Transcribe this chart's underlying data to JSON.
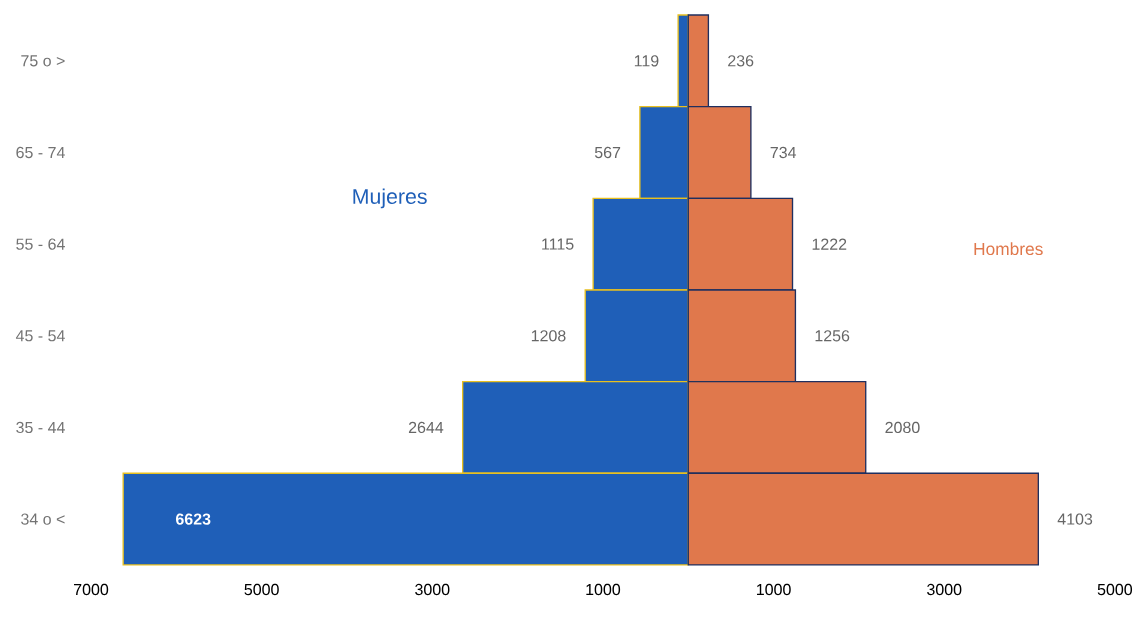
{
  "chart_data": {
    "type": "bar",
    "orientation": "horizontal",
    "data_labels": true,
    "categories": [
      "75 o >",
      "65 - 74",
      "55 - 64",
      "45 - 54",
      "35 - 44",
      "34 o <"
    ],
    "series": [
      {
        "name": "Mujeres",
        "color": "#1f5fb8",
        "values": [
          119,
          567,
          1115,
          1208,
          2644,
          6623
        ],
        "base": [
          -119,
          -567,
          -1115,
          -1208,
          -2644,
          -6623
        ]
      },
      {
        "name": "Hombres",
        "color": "#e0784c",
        "values": [
          236,
          734,
          1222,
          1256,
          2080,
          4103
        ]
      }
    ],
    "xlim": [
      -7000,
      5000
    ],
    "xticks": [
      {
        "value": -7000,
        "label": "7000"
      },
      {
        "value": -5000,
        "label": "5000"
      },
      {
        "value": -3000,
        "label": "3000"
      },
      {
        "value": -1000,
        "label": "1000"
      },
      {
        "value": 1000,
        "label": "1000"
      },
      {
        "value": 3000,
        "label": "3000"
      },
      {
        "value": 5000,
        "label": "5000"
      }
    ]
  }
}
